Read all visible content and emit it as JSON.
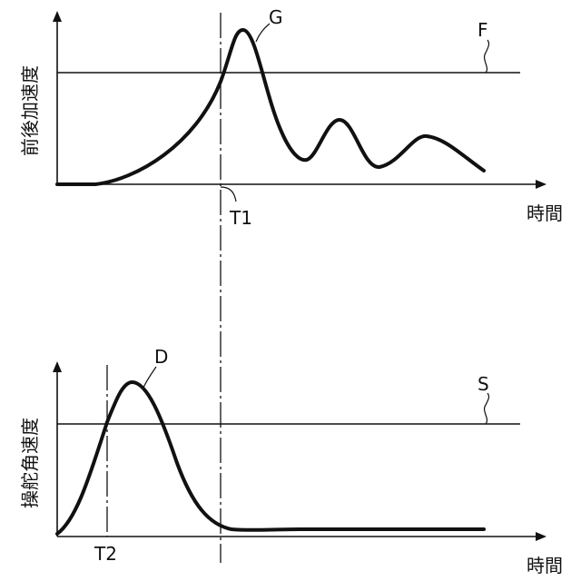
{
  "top_graph": {
    "y_axis_label": "前後加速度",
    "x_axis_label": "時間",
    "curve_label": "G",
    "threshold_label": "F",
    "time_marker_label": "T1"
  },
  "bottom_graph": {
    "y_axis_label": "操舵角速度",
    "x_axis_label": "時間",
    "curve_label": "D",
    "threshold_label": "S",
    "time_marker_label": "T2"
  }
}
